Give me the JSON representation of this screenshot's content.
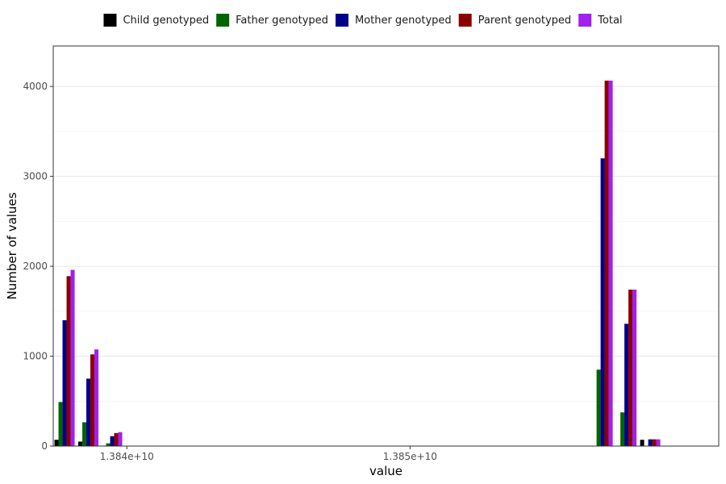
{
  "chart_data": {
    "type": "bar",
    "xlabel": "value",
    "ylabel": "Number of values",
    "ylim": [
      0,
      4450
    ],
    "xlim": [
      13837400000,
      13860900000
    ],
    "grid": true,
    "legend_position": "top",
    "yticks": [
      0,
      1000,
      2000,
      3000,
      4000
    ],
    "xticks": [
      {
        "value": 13840000000,
        "label": "1.384e+10"
      },
      {
        "value": 13850000000,
        "label": "1.385e+10"
      }
    ],
    "groups": [
      13837800000,
      13838640000,
      13839480000,
      13856800000,
      13857640000,
      13858480000
    ],
    "series": [
      {
        "name": "Child genotyped",
        "color": "#000000",
        "values": [
          70,
          50,
          5,
          0,
          0,
          70
        ]
      },
      {
        "name": "Father genotyped",
        "color": "#006400",
        "values": [
          490,
          265,
          30,
          850,
          375,
          0
        ]
      },
      {
        "name": "Mother genotyped",
        "color": "#00008b",
        "values": [
          1400,
          750,
          110,
          3200,
          1360,
          75
        ]
      },
      {
        "name": "Parent genotyped",
        "color": "#8b0000",
        "values": [
          1890,
          1020,
          145,
          4065,
          1740,
          75
        ]
      },
      {
        "name": "Total",
        "color": "#a020f0",
        "values": [
          1960,
          1075,
          155,
          4065,
          1740,
          75
        ]
      }
    ]
  }
}
